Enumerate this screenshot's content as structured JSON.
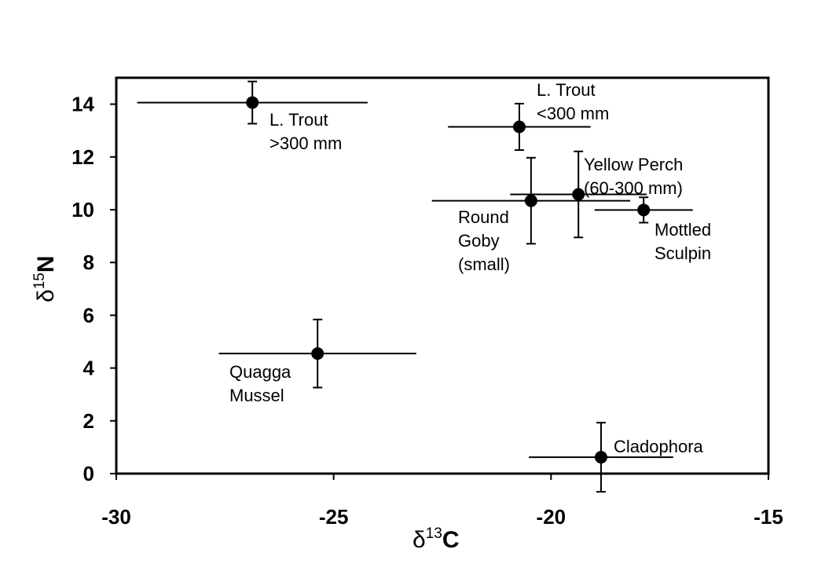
{
  "chart_data": {
    "type": "scatter",
    "xlabel": [
      "δ",
      "13",
      "C"
    ],
    "ylabel": [
      "δ",
      "15",
      "N"
    ],
    "x": [
      -26.87,
      -20.73,
      -19.37,
      -20.46,
      -17.87,
      -25.37,
      -18.85
    ],
    "values": [
      14.06,
      13.14,
      10.58,
      10.34,
      9.99,
      4.55,
      0.62
    ],
    "xerr": [
      2.65,
      1.64,
      1.57,
      2.28,
      1.13,
      2.27,
      1.66
    ],
    "yerr": [
      0.8,
      0.88,
      1.63,
      1.63,
      0.48,
      1.29,
      1.31
    ],
    "labels": [
      [
        "L. Trout",
        ">300 mm"
      ],
      [
        "L. Trout",
        "<300 mm"
      ],
      [
        "Yellow Perch",
        "(60-300 mm)"
      ],
      [
        "Round",
        "Goby",
        "(small)"
      ],
      [
        "Mottled",
        "Sculpin"
      ],
      [
        "Quagga",
        "Mussel"
      ],
      [
        "Cladophora"
      ]
    ],
    "color": "#000000",
    "xlim": [
      -30,
      -15
    ],
    "xticks": [
      -30,
      -25,
      -20,
      -15
    ],
    "ylim": [
      0,
      15
    ],
    "yticks": [
      0,
      2,
      4,
      6,
      8,
      10,
      12,
      14
    ]
  }
}
